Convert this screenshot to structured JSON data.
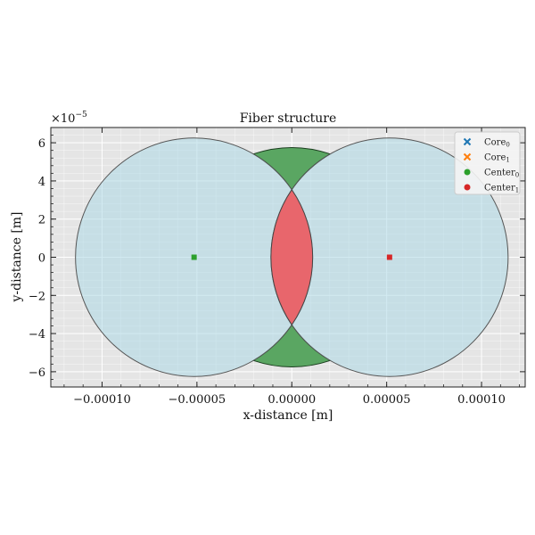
{
  "chart_data": {
    "type": "scatter",
    "title": "Fiber structure",
    "xlabel": "x-distance [m]",
    "ylabel": "y-distance [m]",
    "y_offset_label": "×10",
    "y_offset_exponent": "−5",
    "xlim": [
      -0.000127,
      0.000123
    ],
    "ylim": [
      -6.8e-05,
      6.8e-05
    ],
    "x_ticks": [
      -0.0001,
      -5e-05,
      0.0,
      5e-05,
      0.0001
    ],
    "x_tick_labels": [
      "−0.00010",
      "−0.00005",
      "0.00000",
      "0.00005",
      "0.00010"
    ],
    "y_ticks": [
      -6e-05,
      -4e-05,
      -2e-05,
      0.0,
      2e-05,
      4e-05,
      6e-05
    ],
    "y_tick_labels": [
      "−6",
      "−4",
      "−2",
      "0",
      "2",
      "4",
      "6"
    ],
    "grid": true,
    "legend_position": "top-right",
    "legend": [
      {
        "label": "Core",
        "sub": "0",
        "marker": "x",
        "color": "#1f77b4"
      },
      {
        "label": "Core",
        "sub": "1",
        "marker": "x",
        "color": "#ff7f0e"
      },
      {
        "label": "Center",
        "sub": "0",
        "marker": "circle",
        "color": "#2ca02c"
      },
      {
        "label": "Center",
        "sub": "1",
        "marker": "circle",
        "color": "#d62728"
      }
    ],
    "circles": [
      {
        "name": "fiber 0",
        "cx": -5.15e-05,
        "cy": 0.0,
        "r": 6.25e-05,
        "fill": "#add8e6"
      },
      {
        "name": "fiber 1",
        "cx": 5.15e-05,
        "cy": 0.0,
        "r": 6.25e-05,
        "fill": "#add8e6"
      }
    ],
    "overlap_fill": "#e8666c",
    "cusp_fill": "#5aa662",
    "cusp": {
      "top_y_mid": 5.75e-05,
      "bottom_y_mid": -5.75e-05
    },
    "centers": [
      {
        "x": -5.15e-05,
        "y": 0.0,
        "color": "#2ca02c"
      },
      {
        "x": 5.15e-05,
        "y": 0.0,
        "color": "#d62728"
      }
    ],
    "colors": {
      "plot_background": "#e5e5e5",
      "grid": "#ffffff"
    }
  }
}
